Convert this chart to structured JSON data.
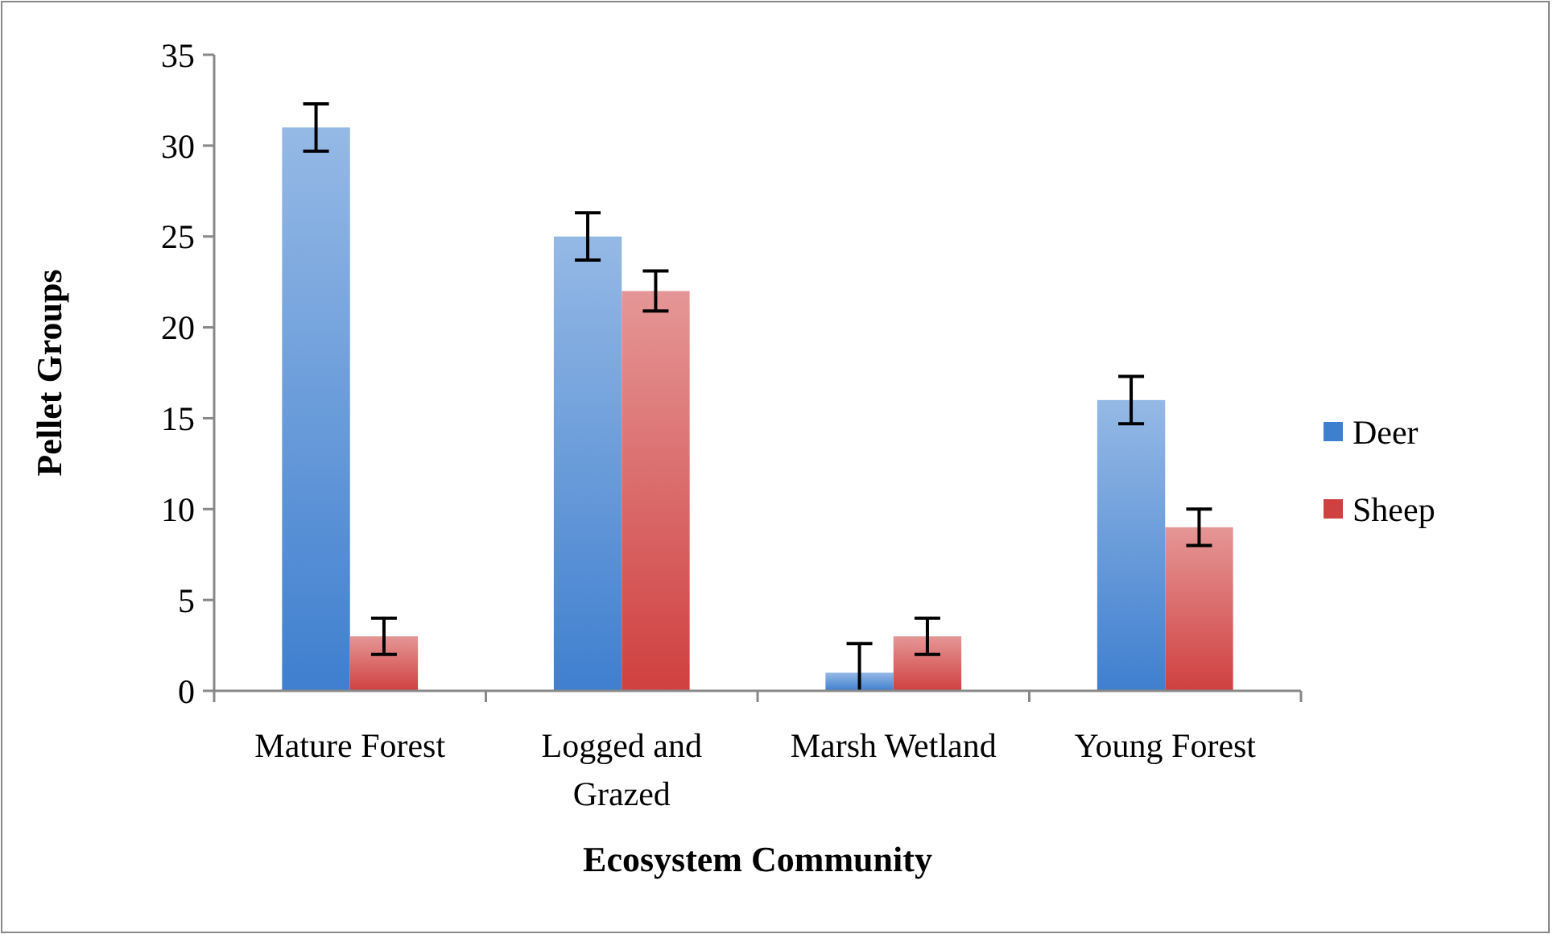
{
  "chart_data": {
    "type": "bar",
    "xlabel": "Ecosystem Community",
    "ylabel": "Pellet Groups",
    "categories": [
      "Mature Forest",
      "Logged and Grazed",
      "Marsh Wetland",
      "Young Forest"
    ],
    "series": [
      {
        "name": "Deer",
        "color": "#3f7fcf",
        "values": [
          31,
          25,
          1,
          16
        ],
        "errors": [
          1.3,
          1.3,
          [
            0,
            2.6
          ],
          1.3
        ]
      },
      {
        "name": "Sheep",
        "color": "#d04040",
        "values": [
          3,
          22,
          3,
          9
        ],
        "errors": [
          1,
          1.1,
          1,
          1
        ]
      }
    ],
    "ylim": [
      0,
      35
    ],
    "yticks": [
      0,
      5,
      10,
      15,
      20,
      25,
      30,
      35
    ],
    "grid": false,
    "legend": "right"
  }
}
